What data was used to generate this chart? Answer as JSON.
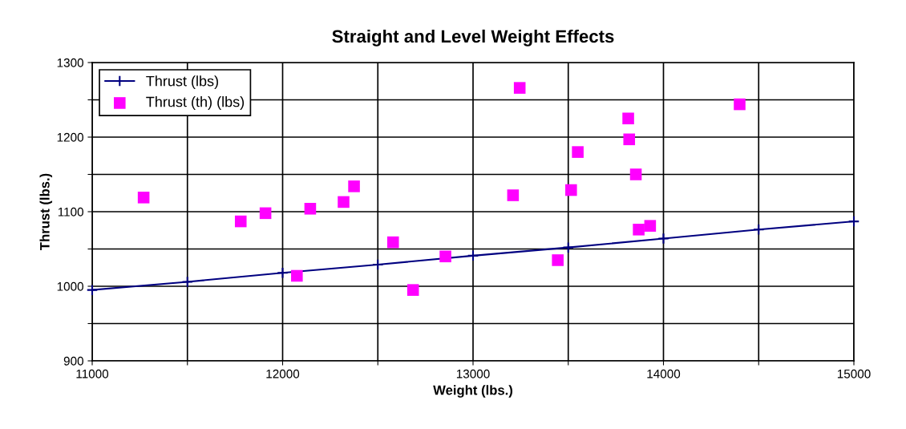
{
  "chart_data": {
    "type": "line",
    "title": "Straight and Level Weight Effects",
    "xlabel": "Weight (lbs.)",
    "ylabel": "Thrust (lbs.)",
    "xlim": [
      11000,
      15000
    ],
    "xticks": [
      11000,
      {
        "value": 11500,
        "label": null
      },
      12000,
      {
        "value": 12500,
        "label": null
      },
      13000,
      {
        "value": 13500,
        "label": null
      },
      14000,
      {
        "value": 14500,
        "label": null
      },
      15000
    ],
    "ylim": [
      900,
      1300
    ],
    "yticks": [
      900,
      {
        "value": 950,
        "label": null
      },
      1000,
      {
        "value": 1050,
        "label": null
      },
      1100,
      {
        "value": 1150,
        "label": null
      },
      1200,
      {
        "value": 1250,
        "label": null
      },
      1300
    ],
    "grid": true,
    "legend": "top left",
    "series": [
      {
        "name": "Thrust (lbs)",
        "color": "#000080",
        "marker": "cross",
        "x": [
          11000,
          11500,
          12000,
          12500,
          13000,
          13500,
          14000,
          14500,
          15000
        ],
        "values": [
          995,
          1006,
          1018,
          1029,
          1041,
          1052,
          1064,
          1076,
          1087
        ]
      },
      {
        "name": "Thrust (th) (lbs)",
        "type": "scatter",
        "color": "#ff00ff",
        "marker": "square",
        "x": [
          11270,
          11780,
          11910,
          12145,
          12320,
          12375,
          12580,
          12685,
          12075,
          12855,
          13210,
          13245,
          13445,
          13515,
          13550,
          13815,
          13820,
          13855,
          13870,
          13930,
          14400
        ],
        "values": [
          1119,
          1087,
          1098,
          1104,
          1113,
          1134,
          1059,
          995,
          1014,
          1040,
          1122,
          1266,
          1035,
          1129,
          1180,
          1225,
          1197,
          1150,
          1076,
          1081,
          1244
        ]
      }
    ]
  }
}
